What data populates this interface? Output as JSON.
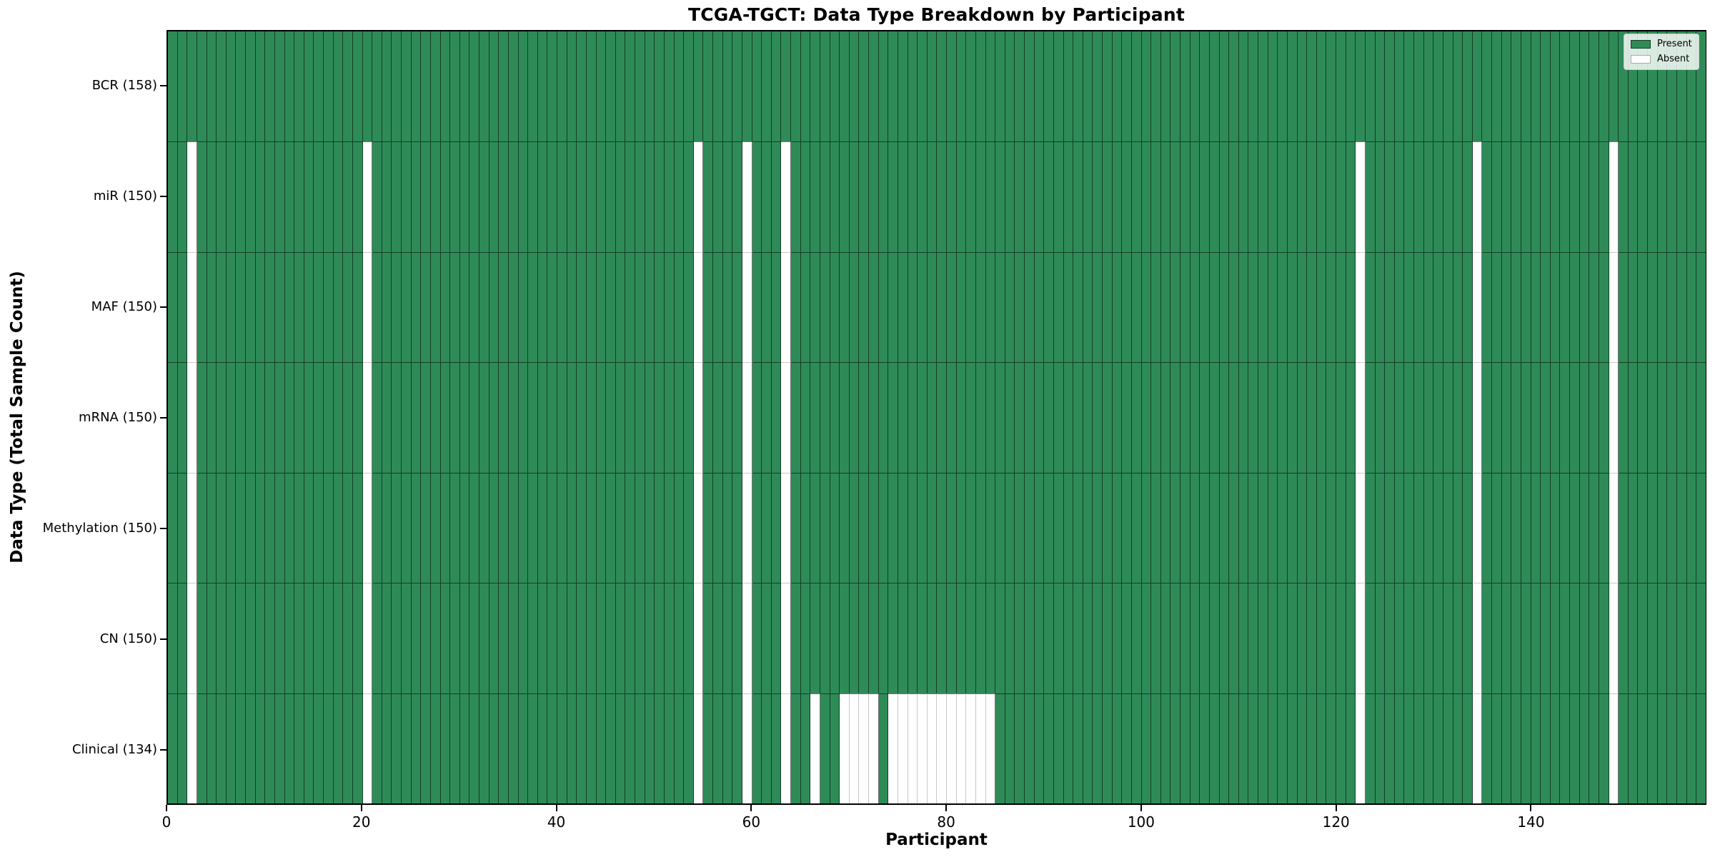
{
  "chart_data": {
    "type": "heatmap",
    "title": "TCGA-TGCT: Data Type Breakdown by Participant",
    "xlabel": "Participant",
    "ylabel": "Data Type (Total Sample Count)",
    "n_participants": 158,
    "xlim": [
      0,
      158
    ],
    "x_ticks": [
      0,
      20,
      40,
      60,
      80,
      100,
      120,
      140
    ],
    "grid": false,
    "legend_position": "upper right",
    "legend": [
      {
        "label": "Present",
        "color": "#2e8b57"
      },
      {
        "label": "Absent",
        "color": "#ffffff"
      }
    ],
    "colors": {
      "present": "#2e8b57",
      "absent": "#ffffff",
      "edge_dark": "rgba(0,0,0,0.55)",
      "edge_light": "#c9c9c9"
    },
    "rows": [
      {
        "label": "BCR (158)",
        "data_type": "BCR",
        "present_count": 158,
        "absent_participants": []
      },
      {
        "label": "miR (150)",
        "data_type": "miR",
        "present_count": 150,
        "absent_participants": [
          2,
          20,
          54,
          59,
          63,
          122,
          134,
          148
        ]
      },
      {
        "label": "MAF (150)",
        "data_type": "MAF",
        "present_count": 150,
        "absent_participants": [
          2,
          20,
          54,
          59,
          63,
          122,
          134,
          148
        ]
      },
      {
        "label": "mRNA (150)",
        "data_type": "mRNA",
        "present_count": 150,
        "absent_participants": [
          2,
          20,
          54,
          59,
          63,
          122,
          134,
          148
        ]
      },
      {
        "label": "Methylation (150)",
        "data_type": "Methylation",
        "present_count": 150,
        "absent_participants": [
          2,
          20,
          54,
          59,
          63,
          122,
          134,
          148
        ]
      },
      {
        "label": "CN (150)",
        "data_type": "CN",
        "present_count": 150,
        "absent_participants": [
          2,
          20,
          54,
          59,
          63,
          122,
          134,
          148
        ]
      },
      {
        "label": "Clinical (134)",
        "data_type": "Clinical",
        "present_count": 134,
        "absent_participants": [
          2,
          20,
          54,
          59,
          63,
          66,
          69,
          70,
          71,
          72,
          74,
          75,
          76,
          77,
          78,
          79,
          80,
          81,
          82,
          83,
          84,
          122,
          134,
          148
        ]
      }
    ]
  }
}
